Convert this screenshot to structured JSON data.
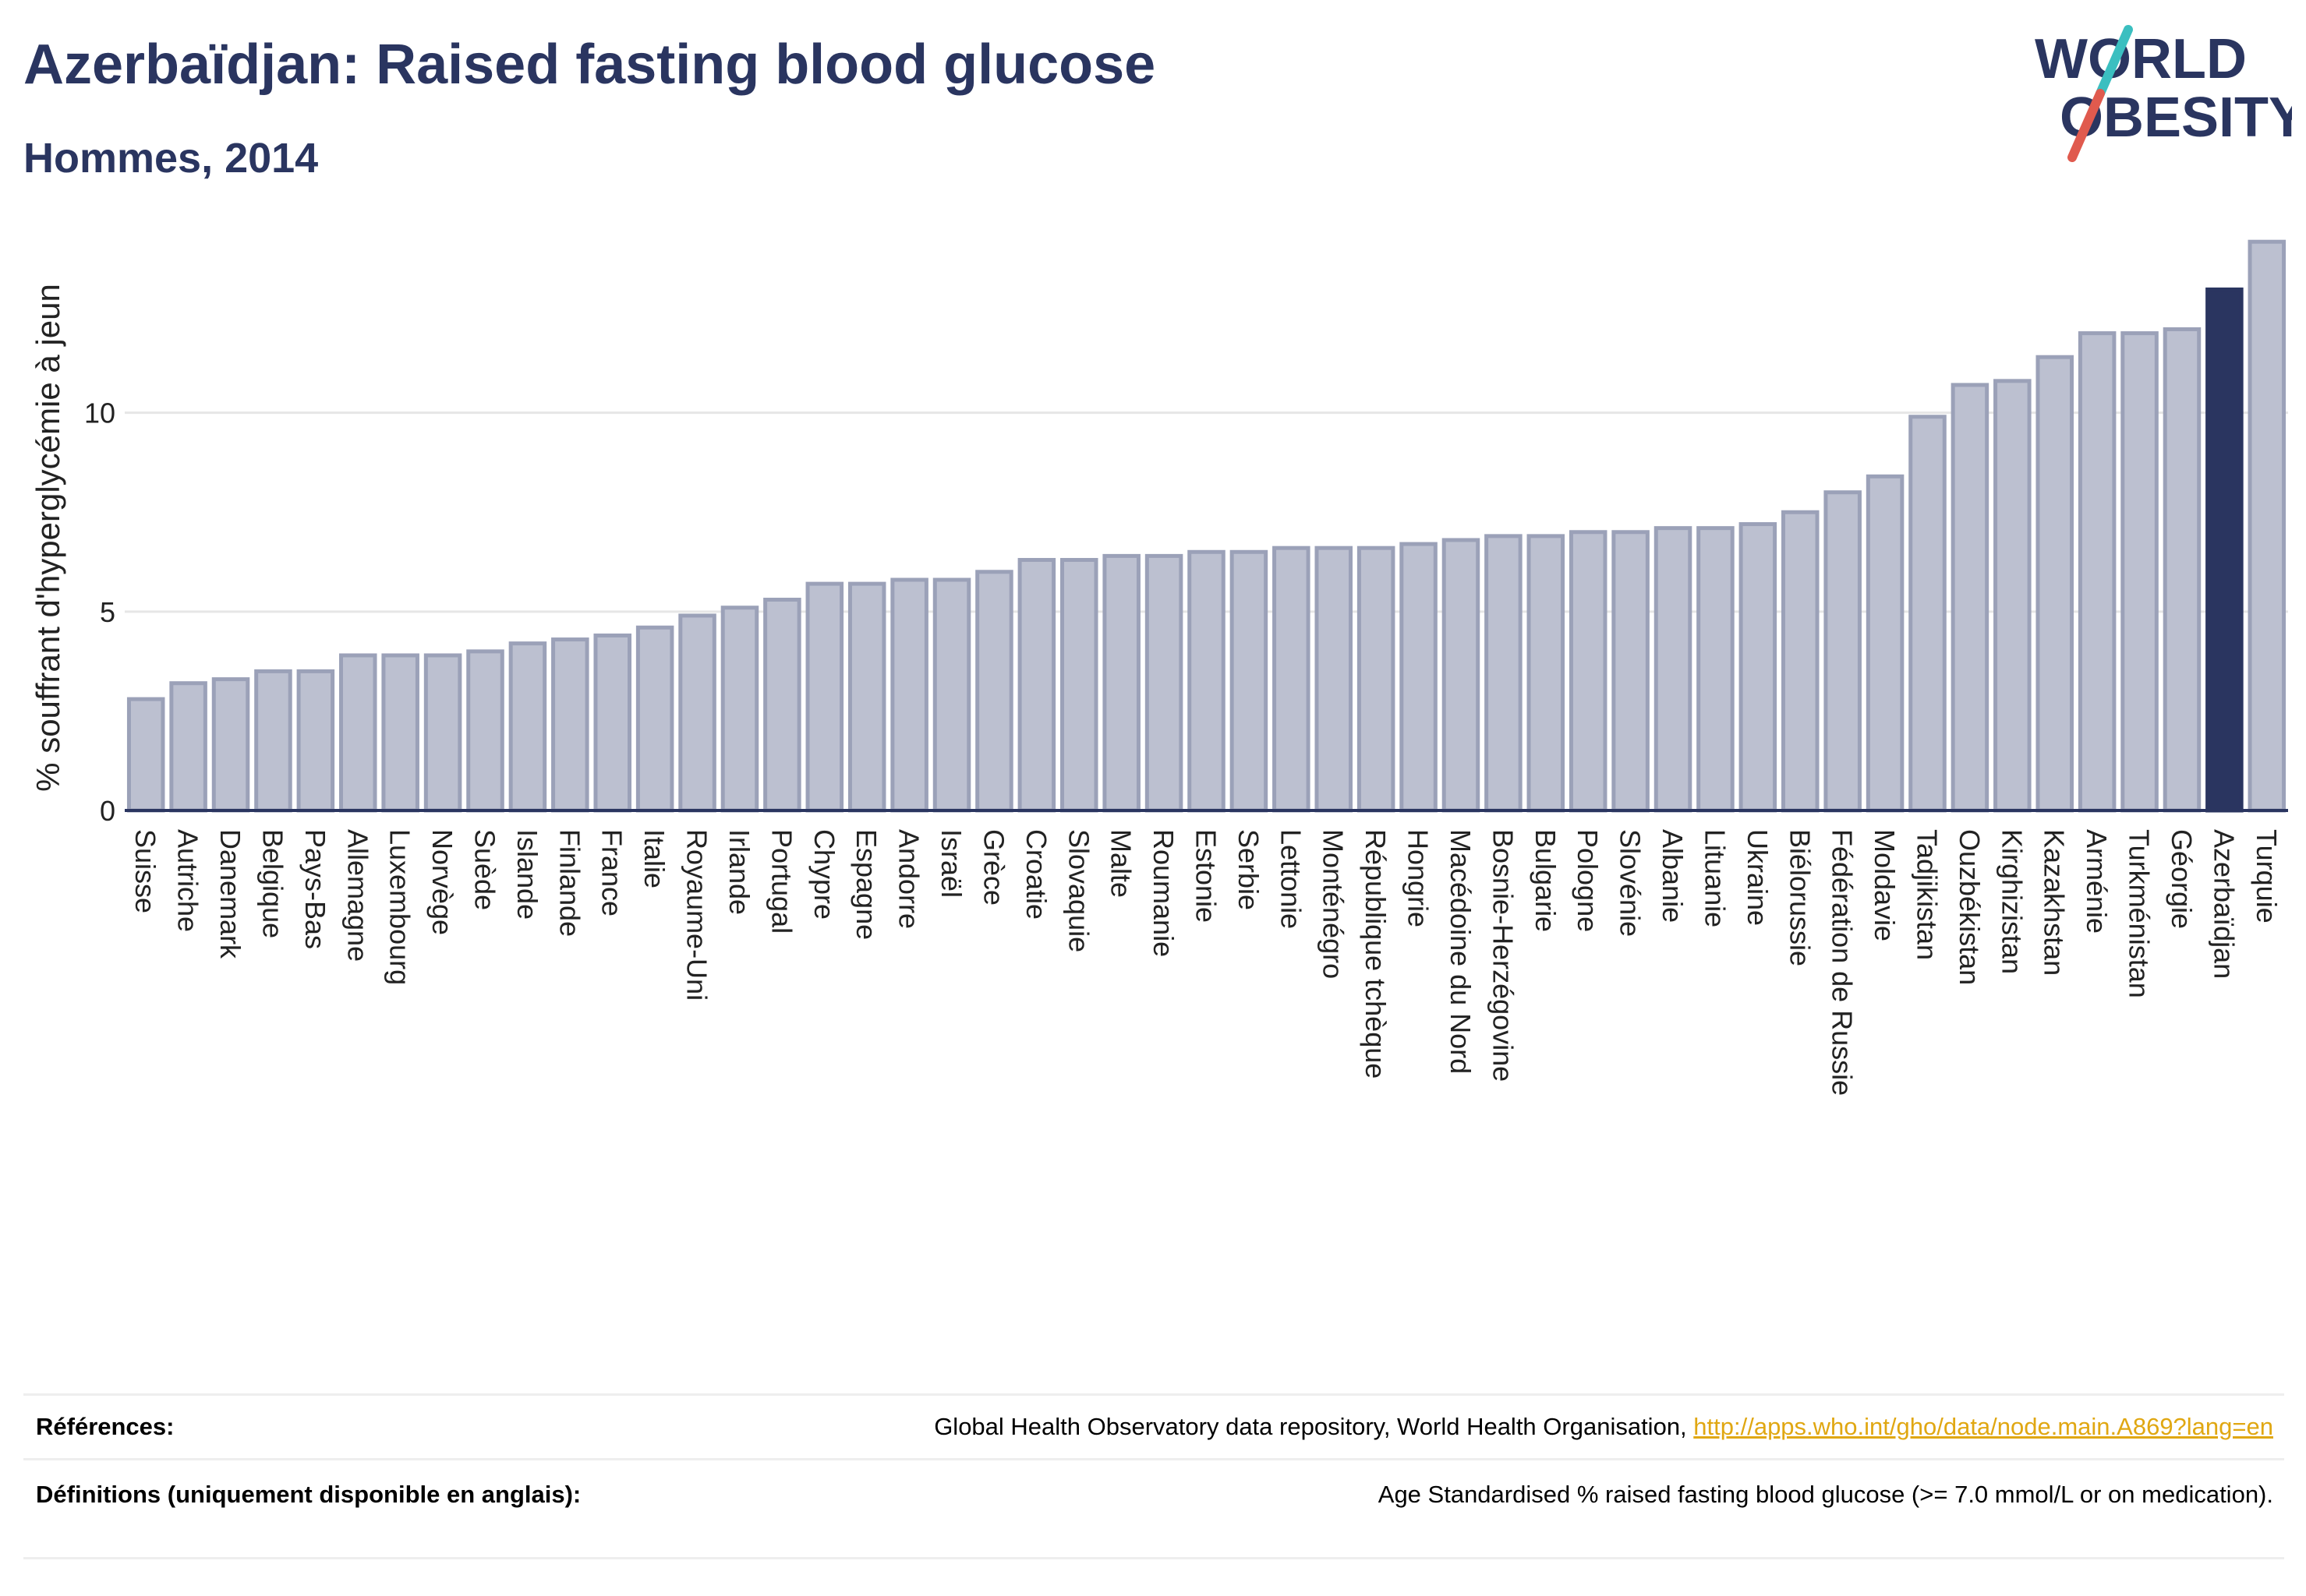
{
  "header": {
    "title": "Azerbaïdjan: Raised fasting blood glucose",
    "subtitle": "Hommes, 2014"
  },
  "logo": {
    "line1": "WORLD",
    "line2": "OBESITY",
    "colors": {
      "text": "#2a3560",
      "slash_red": "#e05a4e",
      "slash_teal": "#3bbfc0"
    }
  },
  "colors": {
    "bar_fill": "#bcc0d0",
    "bar_stroke": "#9ba1b8",
    "highlight": "#2a3560",
    "grid": "#e6e6e6",
    "axis": "#2a3560",
    "link": "#e0a712"
  },
  "chart_data": {
    "type": "bar",
    "ylabel": "% souffrant d'hyperglycémie à jeun",
    "ylim": [
      0,
      14.5
    ],
    "yticks": [
      0,
      5,
      10
    ],
    "grid": true,
    "highlight": "Azerbaïdjan",
    "categories": [
      "Suisse",
      "Autriche",
      "Danemark",
      "Belgique",
      "Pays-Bas",
      "Allemagne",
      "Luxembourg",
      "Norvège",
      "Suède",
      "Islande",
      "Finlande",
      "France",
      "Italie",
      "Royaume-Uni",
      "Irlande",
      "Portugal",
      "Chypre",
      "Espagne",
      "Andorre",
      "Israël",
      "Grèce",
      "Croatie",
      "Slovaquie",
      "Malte",
      "Roumanie",
      "Estonie",
      "Serbie",
      "Lettonie",
      "Monténégro",
      "République tchèque",
      "Hongrie",
      "Macédoine du Nord",
      "Bosnie-Herzégovine",
      "Bulgarie",
      "Pologne",
      "Slovénie",
      "Albanie",
      "Lituanie",
      "Ukraine",
      "Biélorussie",
      "Fédération de Russie",
      "Moldavie",
      "Tadjikistan",
      "Ouzbékistan",
      "Kirghizistan",
      "Kazakhstan",
      "Arménie",
      "Turkménistan",
      "Géorgie",
      "Azerbaïdjan",
      "Turquie"
    ],
    "values": [
      2.8,
      3.2,
      3.3,
      3.5,
      3.5,
      3.9,
      3.9,
      3.9,
      4.0,
      4.2,
      4.3,
      4.4,
      4.6,
      4.9,
      5.1,
      5.3,
      5.7,
      5.7,
      5.8,
      5.8,
      6.0,
      6.3,
      6.3,
      6.4,
      6.4,
      6.5,
      6.5,
      6.6,
      6.6,
      6.6,
      6.7,
      6.8,
      6.9,
      6.9,
      7.0,
      7.0,
      7.1,
      7.1,
      7.2,
      7.5,
      8.0,
      8.4,
      9.9,
      10.7,
      10.8,
      11.4,
      12.0,
      12.0,
      12.1,
      13.1,
      14.3
    ]
  },
  "references": {
    "label": "Références:",
    "text": "Global Health Observatory data repository, World Health Organisation, ",
    "link": "http://apps.who.int/gho/data/node.main.A869?lang=en"
  },
  "definitions": {
    "label": "Définitions (uniquement disponible en anglais):",
    "text": "Age Standardised % raised fasting blood glucose (>= 7.0 mmol/L or on medication)."
  }
}
